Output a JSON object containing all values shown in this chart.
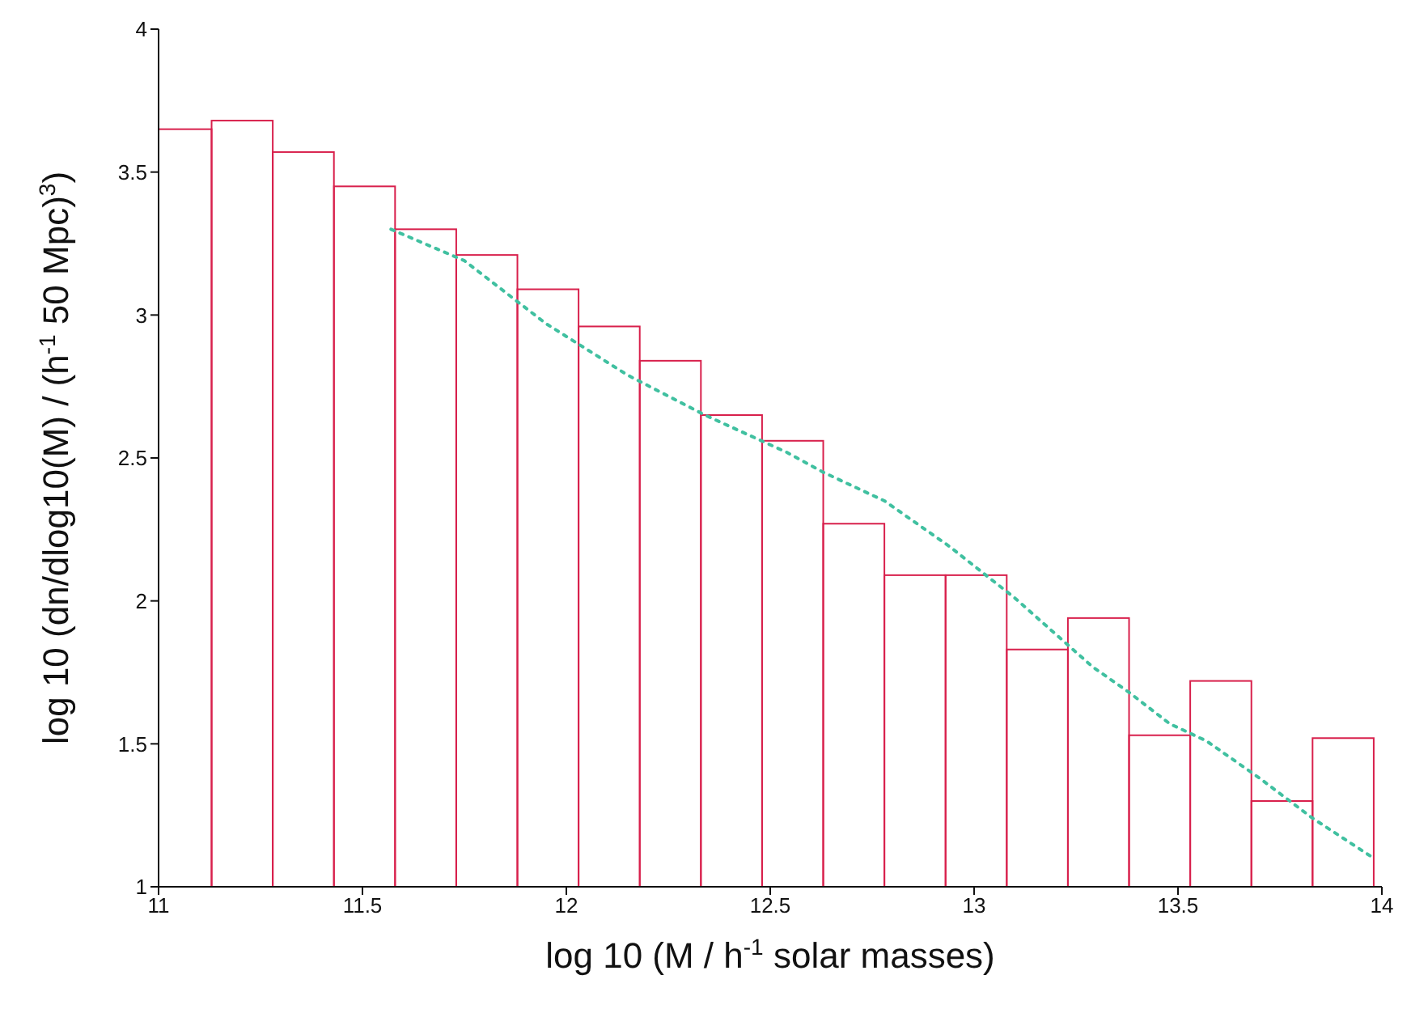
{
  "chart_data": {
    "type": "histogram",
    "xlabel": "log 10 (M / h$^{-1}$ solar masses)",
    "ylabel": "log 10 (dn/dlog10(M) / (h$^{-1}$ 50 Mpc)$^{3}$)",
    "bins": [
      11,
      11.13,
      11.28,
      11.43,
      11.58,
      11.73,
      11.88,
      12.03,
      12.18,
      12.33,
      12.48,
      12.63,
      12.78,
      12.93,
      13.08,
      13.23,
      13.38,
      13.53,
      13.68,
      13.83,
      13.98
    ],
    "values": [
      3.65,
      3.68,
      3.57,
      3.45,
      3.3,
      3.21,
      3.09,
      2.96,
      2.84,
      2.65,
      2.56,
      2.27,
      2.09,
      2.09,
      1.83,
      1.94,
      1.53,
      1.72,
      1.3,
      1.52
    ],
    "color": "#d8204c",
    "series": [
      {
        "type": "line",
        "color": "#40c0a0",
        "line_style": "dotted",
        "x": [
          11.57,
          11.75,
          11.95,
          12.15,
          12.34,
          12.54,
          12.63,
          12.78,
          12.94,
          13.1,
          13.29,
          13.38,
          13.48,
          13.57,
          13.7,
          13.83,
          13.98
        ],
        "values": [
          3.3,
          3.19,
          2.97,
          2.79,
          2.65,
          2.52,
          2.45,
          2.35,
          2.19,
          2.01,
          1.77,
          1.68,
          1.57,
          1.51,
          1.38,
          1.24,
          1.1
        ]
      }
    ],
    "xlim": [
      11,
      14
    ],
    "xticks": [
      11,
      11.5,
      12,
      12.5,
      13,
      13.5,
      14
    ],
    "ylim": [
      1,
      4
    ],
    "yticks": [
      1,
      1.5,
      2,
      2.5,
      3,
      3.5,
      4
    ],
    "grid": false,
    "legend": false
  }
}
